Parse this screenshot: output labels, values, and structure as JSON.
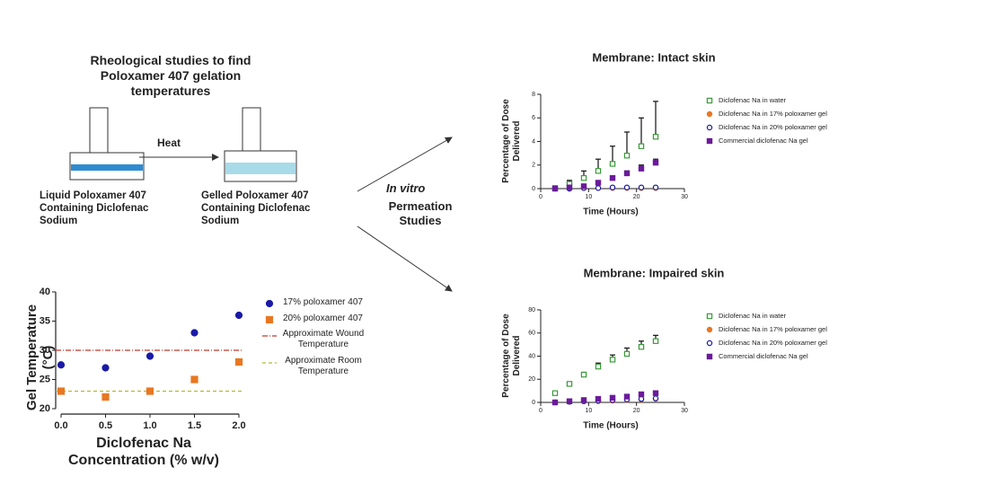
{
  "diagram": {
    "title": "Rheological studies to find Poloxamer 407 gelation temperatures",
    "arrow_label": "Heat",
    "left_label": "Liquid Poloxamer 407 Containing Diclofenac Sodium",
    "right_label": "Gelled Poloxamer 407 Containing Diclofenac Sodium",
    "center_label_italic": "In vitro",
    "center_label": "Permeation Studies"
  },
  "chart_data": [
    {
      "type": "scatter",
      "x_label": "Diclofenac Na Concentration (% w/v)",
      "y_label": "Gel Temperature (°C)",
      "x": [
        0,
        0.5,
        1,
        1.5,
        2
      ],
      "xlim": [
        0,
        2
      ],
      "xticks": [
        {
          "value": 0,
          "label": "0.0"
        },
        0.5,
        {
          "value": 1,
          "label": "1.0"
        },
        1.5,
        {
          "value": 2,
          "label": "2.0"
        }
      ],
      "ylim": [
        20,
        40
      ],
      "yticks": [
        20,
        25,
        30,
        35,
        40
      ],
      "series": [
        {
          "name": "17% poloxamer 407",
          "color": "#1a1aa6",
          "marker": "circle",
          "filled": true,
          "values": [
            27.5,
            27,
            29,
            33,
            36
          ]
        },
        {
          "name": "20% poloxamer 407",
          "color": "#e87722",
          "marker": "square",
          "filled": true,
          "values": [
            23,
            22,
            23,
            25,
            28
          ]
        }
      ],
      "reference_lines": [
        {
          "name": "Approximate Wound Temperature",
          "value": 30,
          "color": "#c0392b",
          "style": "dash-dot"
        },
        {
          "name": "Approximate Room Temperature",
          "value": 23,
          "color": "#b8b830",
          "style": "dashed"
        }
      ]
    },
    {
      "type": "scatter",
      "title": "Membrane: Intact skin",
      "x_label": "Time (Hours)",
      "y_label": "Percentage of Dose Delivered",
      "x": [
        3,
        6,
        9,
        12,
        15,
        18,
        21,
        24
      ],
      "xlim": [
        0,
        30
      ],
      "xticks": [
        0,
        10,
        20,
        30
      ],
      "ylim": [
        0,
        8
      ],
      "yticks": [
        0,
        2,
        4,
        6,
        8
      ],
      "series": [
        {
          "name": "Diclofenac Na in water",
          "color": "#3a9a3a",
          "marker": "square",
          "filled": false,
          "values": [
            0.05,
            0.4,
            0.9,
            1.5,
            2.1,
            2.8,
            3.6,
            4.4
          ],
          "errors": [
            0.1,
            0.3,
            0.6,
            1,
            1.5,
            2,
            2.4,
            3
          ]
        },
        {
          "name": "Diclofenac Na in 17% poloxamer gel",
          "color": "#e87722",
          "marker": "circle",
          "filled": true,
          "values": [
            0,
            0,
            0.05,
            0.05,
            0.05,
            0.05,
            0.05,
            0.05
          ]
        },
        {
          "name": "Diclofenac Na in 20% poloxamer gel",
          "color": "#1a1aa6",
          "marker": "circle",
          "filled": false,
          "values": [
            0,
            0,
            0.05,
            0.05,
            0.1,
            0.1,
            0.1,
            0.1
          ]
        },
        {
          "name": "Commercial diclofenac Na gel",
          "color": "#6a1b9a",
          "marker": "square",
          "filled": true,
          "values": [
            0,
            0.1,
            0.2,
            0.5,
            0.9,
            1.3,
            1.7,
            2.2
          ],
          "errors": [
            0,
            0,
            0.1,
            0.1,
            0.1,
            0.2,
            0.3,
            0.3
          ]
        }
      ]
    },
    {
      "type": "scatter",
      "title": "Membrane: Impaired skin",
      "x_label": "Time (Hours)",
      "y_label": "Percentage of Dose Delivered",
      "x": [
        3,
        6,
        9,
        12,
        15,
        18,
        21,
        24
      ],
      "xlim": [
        0,
        30
      ],
      "xticks": [
        0,
        10,
        20,
        30
      ],
      "ylim": [
        0,
        80
      ],
      "yticks": [
        0,
        20,
        40,
        60,
        80
      ],
      "series": [
        {
          "name": "Diclofenac Na in water",
          "color": "#3a9a3a",
          "marker": "square",
          "filled": false,
          "values": [
            8,
            16,
            24,
            31,
            37,
            42,
            48,
            53
          ],
          "errors": [
            1,
            1,
            2,
            3,
            4,
            5,
            5,
            5
          ]
        },
        {
          "name": "Diclofenac Na in 17% poloxamer gel",
          "color": "#e87722",
          "marker": "circle",
          "filled": true,
          "values": [
            0,
            0.5,
            1,
            1,
            1.5,
            2,
            2.5,
            3
          ]
        },
        {
          "name": "Diclofenac Na in 20% poloxamer gel",
          "color": "#1a1aa6",
          "marker": "circle",
          "filled": false,
          "values": [
            0,
            0.5,
            1,
            1.5,
            2,
            2.5,
            3,
            3.5
          ]
        },
        {
          "name": "Commercial diclofenac Na gel",
          "color": "#6a1b9a",
          "marker": "square",
          "filled": true,
          "values": [
            0,
            1,
            2,
            3,
            4,
            5,
            7,
            8
          ],
          "errors": [
            0,
            0,
            0,
            0,
            0.5,
            0.5,
            1,
            1
          ]
        }
      ]
    }
  ]
}
